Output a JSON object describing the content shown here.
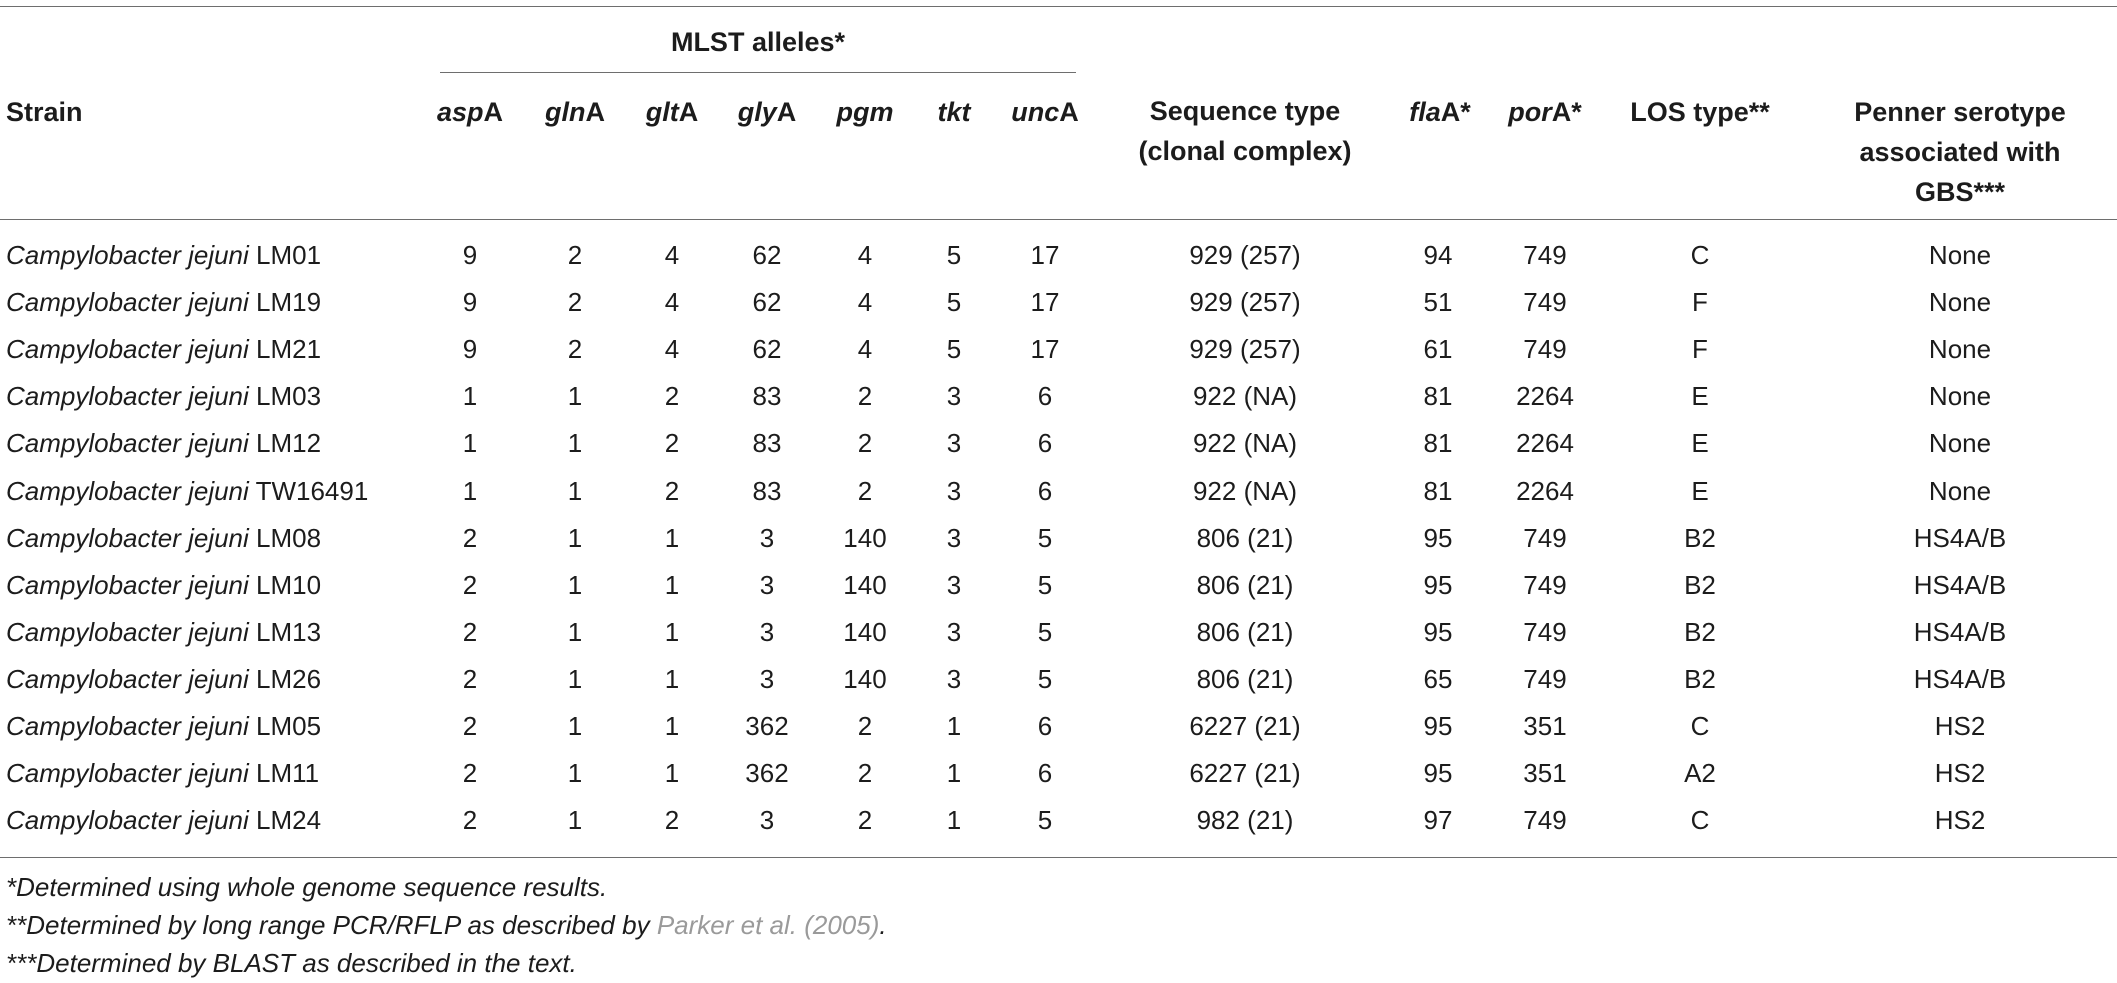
{
  "group_header": "MLST alleles*",
  "headers": {
    "strain": "Strain",
    "mlst": [
      {
        "italic": "asp",
        "suffix": "A"
      },
      {
        "italic": "gln",
        "suffix": "A"
      },
      {
        "italic": "glt",
        "suffix": "A"
      },
      {
        "italic": "gly",
        "suffix": "A"
      },
      {
        "italic": "pgm",
        "suffix": ""
      },
      {
        "italic": "tkt",
        "suffix": ""
      },
      {
        "italic": "unc",
        "suffix": "A"
      }
    ],
    "seq_type_line1": "Sequence type",
    "seq_type_line2": "(clonal complex)",
    "fla": {
      "italic": "fla",
      "suffix": "A*"
    },
    "por": {
      "italic": "por",
      "suffix": "A*"
    },
    "los": "LOS type**",
    "penner_line1": "Penner serotype",
    "penner_line2": "associated with",
    "penner_line3": "GBS***"
  },
  "rows": [
    {
      "species": "Campylobacter jejuni",
      "id": "LM01",
      "aspA": "9",
      "glnA": "2",
      "gltA": "4",
      "glyA": "62",
      "pgm": "4",
      "tkt": "5",
      "uncA": "17",
      "st": "929 (257)",
      "flaA": "94",
      "porA": "749",
      "los": "C",
      "penner": "None"
    },
    {
      "species": "Campylobacter jejuni",
      "id": "LM19",
      "aspA": "9",
      "glnA": "2",
      "gltA": "4",
      "glyA": "62",
      "pgm": "4",
      "tkt": "5",
      "uncA": "17",
      "st": "929 (257)",
      "flaA": "51",
      "porA": "749",
      "los": "F",
      "penner": "None"
    },
    {
      "species": "Campylobacter jejuni",
      "id": "LM21",
      "aspA": "9",
      "glnA": "2",
      "gltA": "4",
      "glyA": "62",
      "pgm": "4",
      "tkt": "5",
      "uncA": "17",
      "st": "929 (257)",
      "flaA": "61",
      "porA": "749",
      "los": "F",
      "penner": "None"
    },
    {
      "species": "Campylobacter jejuni",
      "id": "LM03",
      "aspA": "1",
      "glnA": "1",
      "gltA": "2",
      "glyA": "83",
      "pgm": "2",
      "tkt": "3",
      "uncA": "6",
      "st": "922 (NA)",
      "flaA": "81",
      "porA": "2264",
      "los": "E",
      "penner": "None"
    },
    {
      "species": "Campylobacter jejuni",
      "id": "LM12",
      "aspA": "1",
      "glnA": "1",
      "gltA": "2",
      "glyA": "83",
      "pgm": "2",
      "tkt": "3",
      "uncA": "6",
      "st": "922 (NA)",
      "flaA": "81",
      "porA": "2264",
      "los": "E",
      "penner": "None"
    },
    {
      "species": "Campylobacter jejuni",
      "id": "TW16491",
      "aspA": "1",
      "glnA": "1",
      "gltA": "2",
      "glyA": "83",
      "pgm": "2",
      "tkt": "3",
      "uncA": "6",
      "st": "922 (NA)",
      "flaA": "81",
      "porA": "2264",
      "los": "E",
      "penner": "None"
    },
    {
      "species": "Campylobacter jejuni",
      "id": "LM08",
      "aspA": "2",
      "glnA": "1",
      "gltA": "1",
      "glyA": "3",
      "pgm": "140",
      "tkt": "3",
      "uncA": "5",
      "st": "806 (21)",
      "flaA": "95",
      "porA": "749",
      "los": "B2",
      "penner": "HS4A/B"
    },
    {
      "species": "Campylobacter jejuni",
      "id": "LM10",
      "aspA": "2",
      "glnA": "1",
      "gltA": "1",
      "glyA": "3",
      "pgm": "140",
      "tkt": "3",
      "uncA": "5",
      "st": "806 (21)",
      "flaA": "95",
      "porA": "749",
      "los": "B2",
      "penner": "HS4A/B"
    },
    {
      "species": "Campylobacter jejuni",
      "id": "LM13",
      "aspA": "2",
      "glnA": "1",
      "gltA": "1",
      "glyA": "3",
      "pgm": "140",
      "tkt": "3",
      "uncA": "5",
      "st": "806 (21)",
      "flaA": "95",
      "porA": "749",
      "los": "B2",
      "penner": "HS4A/B"
    },
    {
      "species": "Campylobacter jejuni",
      "id": "LM26",
      "aspA": "2",
      "glnA": "1",
      "gltA": "1",
      "glyA": "3",
      "pgm": "140",
      "tkt": "3",
      "uncA": "5",
      "st": "806 (21)",
      "flaA": "65",
      "porA": "749",
      "los": "B2",
      "penner": "HS4A/B"
    },
    {
      "species": "Campylobacter jejuni",
      "id": "LM05",
      "aspA": "2",
      "glnA": "1",
      "gltA": "1",
      "glyA": "362",
      "pgm": "2",
      "tkt": "1",
      "uncA": "6",
      "st": "6227 (21)",
      "flaA": "95",
      "porA": "351",
      "los": "C",
      "penner": "HS2"
    },
    {
      "species": "Campylobacter jejuni",
      "id": "LM11",
      "aspA": "2",
      "glnA": "1",
      "gltA": "1",
      "glyA": "362",
      "pgm": "2",
      "tkt": "1",
      "uncA": "6",
      "st": "6227 (21)",
      "flaA": "95",
      "porA": "351",
      "los": "A2",
      "penner": "HS2"
    },
    {
      "species": "Campylobacter jejuni",
      "id": "LM24",
      "aspA": "2",
      "glnA": "1",
      "gltA": "2",
      "glyA": "3",
      "pgm": "2",
      "tkt": "1",
      "uncA": "5",
      "st": "982 (21)",
      "flaA": "97",
      "porA": "749",
      "los": "C",
      "penner": "HS2"
    }
  ],
  "footnotes": {
    "fn1": "*Determined using whole genome sequence results.",
    "fn2_pre": "**Determined by long range PCR/RFLP as described by ",
    "fn2_ref": "Parker et al. (2005)",
    "fn2_post": ".",
    "fn3": "***Determined by BLAST as described in the text."
  }
}
